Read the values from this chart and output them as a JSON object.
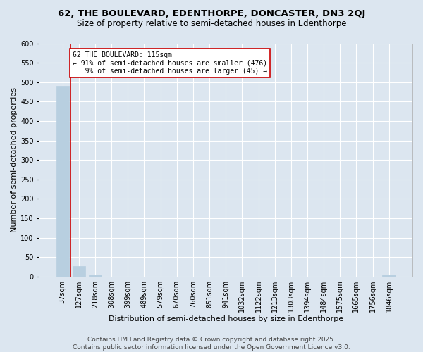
{
  "title1": "62, THE BOULEVARD, EDENTHORPE, DONCASTER, DN3 2QJ",
  "title2": "Size of property relative to semi-detached houses in Edenthorpe",
  "xlabel": "Distribution of semi-detached houses by size in Edenthorpe",
  "ylabel": "Number of semi-detached properties",
  "categories": [
    "37sqm",
    "127sqm",
    "218sqm",
    "308sqm",
    "399sqm",
    "489sqm",
    "579sqm",
    "670sqm",
    "760sqm",
    "851sqm",
    "941sqm",
    "1032sqm",
    "1122sqm",
    "1213sqm",
    "1303sqm",
    "1394sqm",
    "1484sqm",
    "1575sqm",
    "1665sqm",
    "1756sqm",
    "1846sqm"
  ],
  "values": [
    491,
    27,
    5,
    0,
    0,
    0,
    0,
    0,
    0,
    0,
    0,
    0,
    0,
    0,
    0,
    0,
    0,
    0,
    0,
    0,
    5
  ],
  "bar_color": "#b8cfe0",
  "bar_edge_color": "#b8cfe0",
  "property_line_color": "#cc0000",
  "annotation_text": "62 THE BOULEVARD: 115sqm\n← 91% of semi-detached houses are smaller (476)\n   9% of semi-detached houses are larger (45) →",
  "annotation_box_color": "#ffffff",
  "annotation_box_edge_color": "#cc0000",
  "background_color": "#dce6f0",
  "plot_bg_color": "#dce6f0",
  "grid_color": "#ffffff",
  "ylim": [
    0,
    600
  ],
  "yticks": [
    0,
    50,
    100,
    150,
    200,
    250,
    300,
    350,
    400,
    450,
    500,
    550,
    600
  ],
  "footer": "Contains HM Land Registry data © Crown copyright and database right 2025.\nContains public sector information licensed under the Open Government Licence v3.0.",
  "title1_fontsize": 9.5,
  "title2_fontsize": 8.5,
  "xlabel_fontsize": 8,
  "ylabel_fontsize": 8,
  "tick_fontsize": 7,
  "annotation_fontsize": 7,
  "footer_fontsize": 6.5
}
